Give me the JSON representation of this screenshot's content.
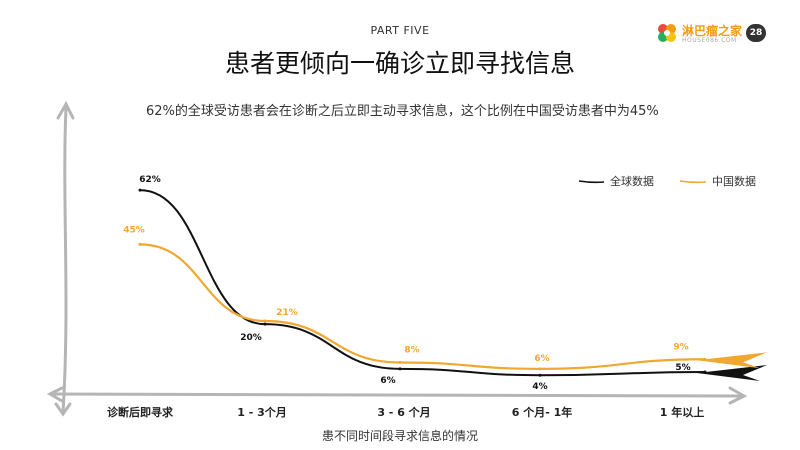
{
  "header": {
    "part": "PART FIVE",
    "title": "患者更倾向一确诊立即寻找信息",
    "description": "62%的全球受访患者会在诊断之后立即主动寻求信息，这个比例在中国受访患者中为45%",
    "logo_text": "淋巴瘤之家",
    "logo_subtext": "HOUSE086.COM",
    "page_number": "28"
  },
  "colors": {
    "global": "#111111",
    "china": "#f0a830",
    "axis": "#b5b5b5"
  },
  "chart_data": {
    "type": "line",
    "categories": [
      "诊断后即寻求",
      "1 - 3个月",
      "3 - 6 个月",
      "6 个月- 1年",
      "1 年以上"
    ],
    "xlabel": "患不同时间段寻求信息的情况",
    "ylabel": "",
    "ylim": [
      0,
      70
    ],
    "grid": false,
    "legend_position": "top-right",
    "series": [
      {
        "name": "全球数据",
        "values": [
          62,
          20,
          6,
          4,
          5
        ],
        "labels": [
          "62%",
          "20%",
          "6%",
          "4%",
          "5%"
        ],
        "color": "#111111"
      },
      {
        "name": "中国数据",
        "values": [
          45,
          21,
          8,
          6,
          9
        ],
        "labels": [
          "45%",
          "21%",
          "8%",
          "6%",
          "9%"
        ],
        "color": "#f0a830"
      }
    ]
  }
}
